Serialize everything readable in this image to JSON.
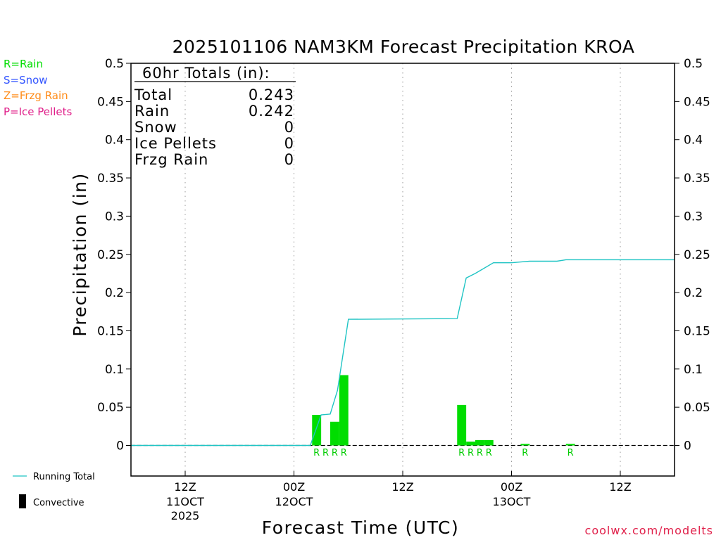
{
  "chart_data": {
    "type": "bar+line",
    "title": "2025101106 NAM3KM Forecast Precipitation KROA",
    "ylabel": "Precipitation (in)",
    "xlabel": "Forecast Time (UTC)",
    "ylim": [
      -0.04,
      0.5
    ],
    "yticks": [
      "0.5",
      "0.45",
      "0.4",
      "0.35",
      "0.3",
      "0.25",
      "0.2",
      "0.15",
      "0.1",
      "0.05",
      "0"
    ],
    "ytick_values": [
      0.5,
      0.45,
      0.4,
      0.35,
      0.3,
      0.25,
      0.2,
      0.15,
      0.1,
      0.05,
      0
    ],
    "xlim_hours": [
      0,
      60
    ],
    "xticks": [
      {
        "hour": 6,
        "line1": "12Z",
        "line2": "11OCT",
        "line3": "2025"
      },
      {
        "hour": 18,
        "line1": "00Z",
        "line2": "12OCT",
        "line3": ""
      },
      {
        "hour": 30,
        "line1": "12Z",
        "line2": "",
        "line3": ""
      },
      {
        "hour": 42,
        "line1": "00Z",
        "line2": "13OCT",
        "line3": ""
      },
      {
        "hour": 54,
        "line1": "12Z",
        "line2": "",
        "line3": ""
      }
    ],
    "legend": [
      {
        "text": "R=Rain",
        "color": "#00dd00"
      },
      {
        "text": "S=Snow",
        "color": "#3355ff"
      },
      {
        "text": "Z=Frzg Rain",
        "color": "#ff8c1a"
      },
      {
        "text": "P=Ice Pellets",
        "color": "#e0208a"
      }
    ],
    "bottom_legend": {
      "running_total": "Running Total",
      "convective": "Convective"
    },
    "totals": {
      "header": "60hr Totals (in):",
      "rows": [
        {
          "label": "Total",
          "value": "0.243"
        },
        {
          "label": "Rain",
          "value": "0.242"
        },
        {
          "label": "Snow",
          "value": "0"
        },
        {
          "label": "Ice Pellets",
          "value": "0"
        },
        {
          "label": "Frzg Rain",
          "value": "0"
        }
      ]
    },
    "bars": [
      {
        "hour": 21,
        "value": 0.04,
        "type": "R"
      },
      {
        "hour": 22,
        "value": 0.0,
        "type": "R"
      },
      {
        "hour": 23,
        "value": 0.031,
        "type": "R"
      },
      {
        "hour": 24,
        "value": 0.092,
        "type": "R"
      },
      {
        "hour": 37,
        "value": 0.053,
        "type": "R"
      },
      {
        "hour": 38,
        "value": 0.005,
        "type": "R"
      },
      {
        "hour": 39,
        "value": 0.007,
        "type": "R"
      },
      {
        "hour": 40,
        "value": 0.007,
        "type": "R"
      },
      {
        "hour": 44,
        "value": 0.002,
        "type": "R"
      },
      {
        "hour": 49,
        "value": 0.002,
        "type": "R"
      }
    ],
    "running_total": {
      "x": [
        0,
        19.8,
        21,
        22,
        22.8,
        24,
        36,
        37,
        38,
        40,
        42,
        43,
        44,
        47,
        48,
        60
      ],
      "y": [
        0,
        0,
        0.04,
        0.041,
        0.072,
        0.165,
        0.166,
        0.219,
        0.225,
        0.239,
        0.239,
        0.24,
        0.241,
        0.241,
        0.243,
        0.243
      ]
    },
    "colors": {
      "bar": "#00dd00",
      "line": "#1fc4c4",
      "zero_line": "#000000",
      "grid": "#999999"
    }
  },
  "credit": "coolwx.com/modelts"
}
